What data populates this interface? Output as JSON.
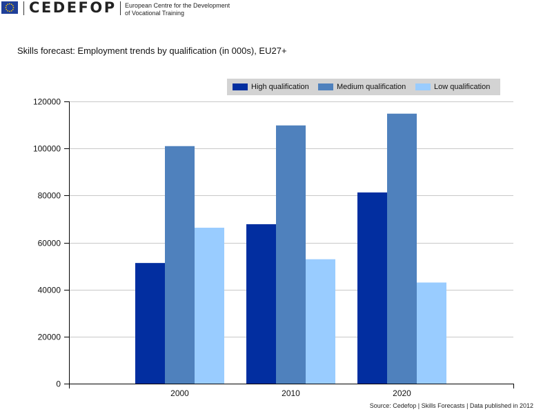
{
  "header": {
    "brand": "CEDEFOP",
    "org_line1": "European Centre for the Development",
    "org_line2": "of Vocational Training",
    "flag_color": "#1f3f99",
    "flag_star_color": "#ffcc00"
  },
  "source_text": "Source: Cedefop | Skills Forecasts | Data published in 2012",
  "chart_data": {
    "type": "bar",
    "title": "Skills forecast: Employment trends by qualification (in 000s), EU27+",
    "xlabel": "",
    "ylabel": "",
    "categories": [
      "2000",
      "2010",
      "2020"
    ],
    "series": [
      {
        "name": "High qualification",
        "color": "#022ea0",
        "values": [
          51300,
          67800,
          81300
        ]
      },
      {
        "name": "Medium qualification",
        "color": "#4f81bd",
        "values": [
          101000,
          109800,
          114800
        ]
      },
      {
        "name": "Low qualification",
        "color": "#99ccff",
        "values": [
          66300,
          52900,
          43000
        ]
      }
    ],
    "ylim": [
      0,
      120000
    ],
    "yticks": [
      "0",
      "20000",
      "40000",
      "60000",
      "80000",
      "100000",
      "120000"
    ],
    "grid": true,
    "legend_position": "top-right",
    "legend_background": "#d3d3d3"
  }
}
